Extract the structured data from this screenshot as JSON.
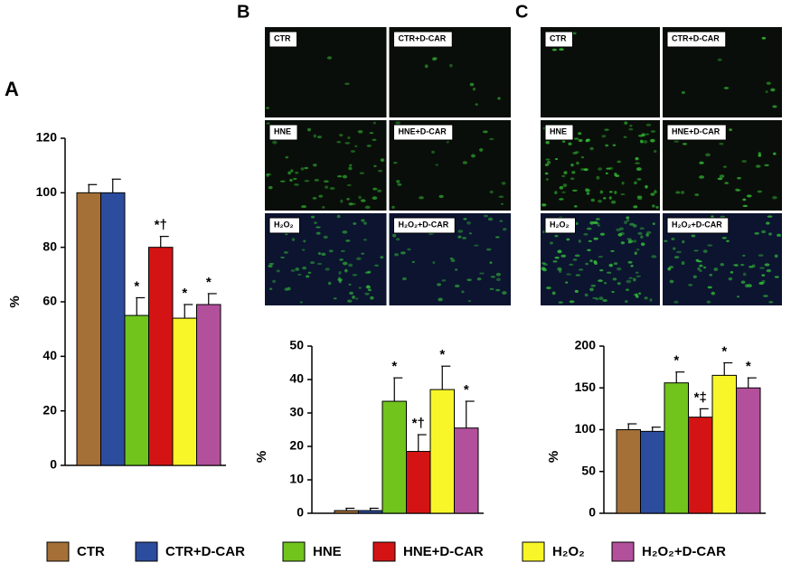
{
  "legend": [
    {
      "name": "CTR",
      "color": "#a47038"
    },
    {
      "name": "CTR+D-CAR",
      "color": "#2c4c9e"
    },
    {
      "name": "HNE",
      "color": "#70c41c"
    },
    {
      "name": "HNE+D-CAR",
      "color": "#d41414"
    },
    {
      "name": "H₂O₂",
      "color": "#f8f628"
    },
    {
      "name": "H₂O₂+D-CAR",
      "color": "#b2509c"
    }
  ],
  "panels": [
    {
      "label": "B",
      "images": [
        "CTR",
        "CTR+D-CAR",
        "HNE",
        "HNE+D-CAR",
        "H₂O₂",
        "H₂O₂+D-CAR"
      ]
    },
    {
      "label": "C",
      "images": [
        "CTR",
        "CTR+D-CAR",
        "HNE",
        "HNE+D-CAR",
        "H₂O₂",
        "H₂O₂+D-CAR"
      ]
    }
  ],
  "chart_data": [
    {
      "type": "bar",
      "label": "A",
      "y_label": "%",
      "ylim": [
        0,
        120
      ],
      "yticks": [
        0,
        20,
        40,
        60,
        80,
        100,
        120
      ],
      "values": [
        100,
        100,
        55,
        80,
        54,
        59
      ],
      "errors": [
        3,
        5,
        6.5,
        4,
        5,
        4
      ],
      "annotations": [
        {
          "bar": 2,
          "text": "*"
        },
        {
          "bar": 3,
          "text": "*†"
        },
        {
          "bar": 4,
          "text": "*"
        },
        {
          "bar": 5,
          "text": "*"
        }
      ]
    },
    {
      "type": "bar",
      "y_label": "%",
      "ylim": [
        0,
        50
      ],
      "yticks": [
        0,
        10,
        20,
        30,
        40,
        50
      ],
      "values": [
        0.8,
        0.8,
        33.5,
        18.5,
        37,
        25.5
      ],
      "errors": [
        0.7,
        0.7,
        7,
        5,
        7,
        8
      ],
      "annotations": [
        {
          "bar": 2,
          "text": "*"
        },
        {
          "bar": 3,
          "text": "*†"
        },
        {
          "bar": 4,
          "text": "*"
        },
        {
          "bar": 5,
          "text": "*"
        }
      ]
    },
    {
      "type": "bar",
      "y_label": "%",
      "ylim": [
        0,
        200
      ],
      "yticks": [
        0,
        50,
        100,
        150,
        200
      ],
      "values": [
        100,
        98,
        156,
        115,
        165,
        150
      ],
      "errors": [
        7,
        5,
        13,
        10,
        15,
        12
      ],
      "annotations": [
        {
          "bar": 2,
          "text": "*"
        },
        {
          "bar": 3,
          "text": "*‡"
        },
        {
          "bar": 4,
          "text": "*"
        },
        {
          "bar": 5,
          "text": "*"
        }
      ]
    }
  ]
}
